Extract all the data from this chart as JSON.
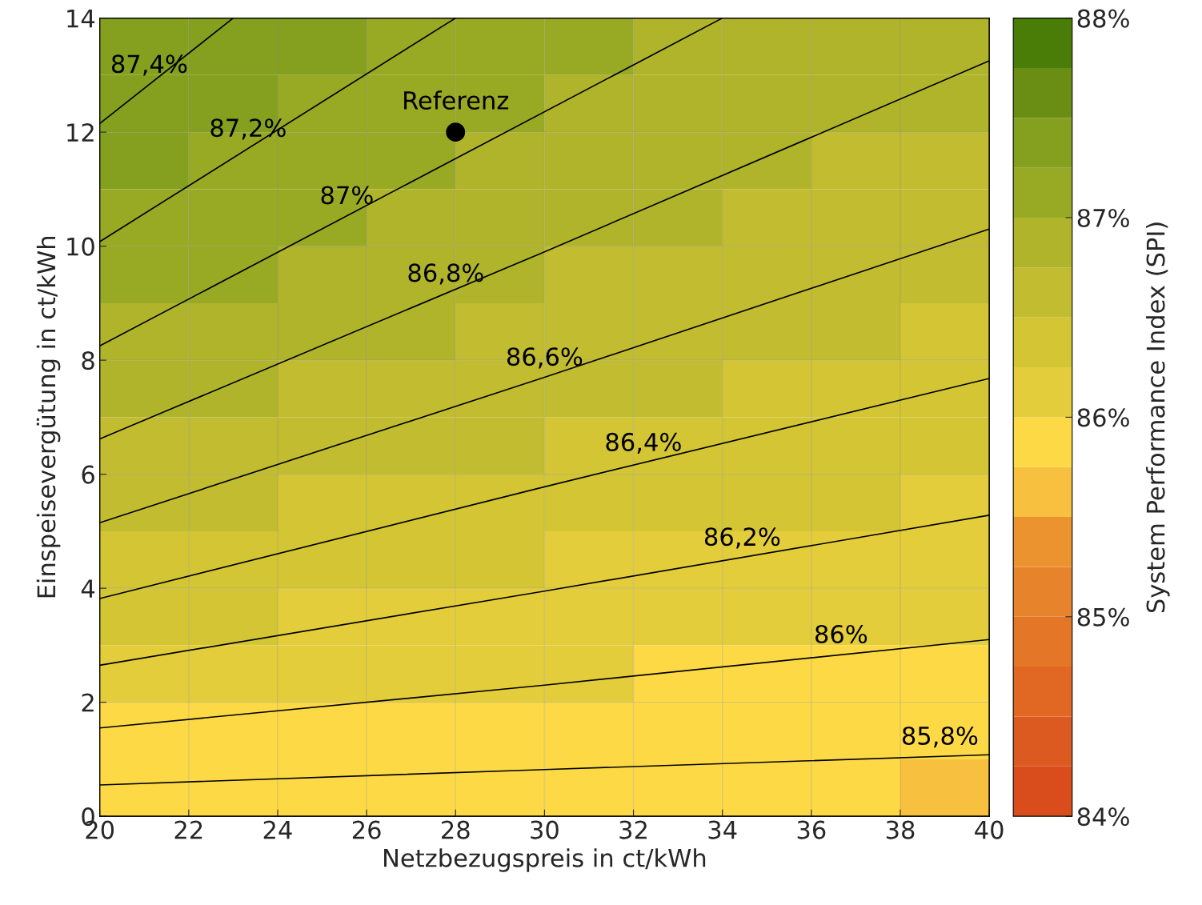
{
  "chart_data": [
    {
      "type": "heatmap",
      "clabel": "System Performance Index (SPI)",
      "clim": [
        84,
        88
      ],
      "cticks": [
        {
          "value": 84,
          "label": "84%"
        },
        {
          "value": 85,
          "label": "85%"
        },
        {
          "value": 86,
          "label": "86%"
        },
        {
          "value": 87,
          "label": "87%"
        },
        {
          "value": 88,
          "label": "88%"
        }
      ],
      "categories": [
        null,
        null,
        null,
        null,
        null,
        null,
        null,
        null,
        null,
        null
      ],
      "y_categories": [
        null,
        null,
        null,
        null,
        null,
        null,
        null,
        null,
        null,
        null,
        null,
        null,
        null,
        null
      ],
      "cells": [
        [
          87.47,
          87.36,
          87.27,
          87.2,
          87.12,
          87.05,
          86.98,
          86.93,
          86.89,
          86.84
        ],
        [
          87.38,
          87.28,
          87.2,
          87.11,
          87.04,
          86.97,
          86.91,
          86.86,
          86.82,
          86.77
        ],
        [
          87.28,
          87.2,
          87.1,
          87.03,
          86.96,
          86.89,
          86.84,
          86.79,
          86.74,
          86.7
        ],
        [
          87.19,
          87.1,
          87.01,
          86.94,
          86.87,
          86.82,
          86.76,
          86.72,
          86.67,
          86.63
        ],
        [
          87.09,
          87.0,
          86.92,
          86.85,
          86.79,
          86.73,
          86.68,
          86.64,
          86.6,
          86.56
        ],
        [
          86.98,
          86.89,
          86.82,
          86.76,
          86.7,
          86.65,
          86.6,
          86.56,
          86.52,
          86.48
        ],
        [
          86.86,
          86.79,
          86.72,
          86.66,
          86.6,
          86.55,
          86.51,
          86.47,
          86.43,
          86.4
        ],
        [
          86.74,
          86.67,
          86.61,
          86.55,
          86.5,
          86.45,
          86.42,
          86.38,
          86.35,
          86.32
        ],
        [
          86.61,
          86.54,
          86.49,
          86.44,
          86.39,
          86.35,
          86.32,
          86.28,
          86.26,
          86.23
        ],
        [
          86.47,
          86.41,
          86.36,
          86.32,
          86.28,
          86.24,
          86.21,
          86.19,
          86.16,
          86.14
        ],
        [
          86.32,
          86.27,
          86.23,
          86.19,
          86.16,
          86.13,
          86.1,
          86.08,
          86.06,
          86.05
        ],
        [
          86.15,
          86.11,
          86.08,
          86.06,
          86.03,
          86.01,
          85.99,
          85.98,
          85.96,
          85.95
        ],
        [
          85.98,
          85.95,
          85.93,
          85.91,
          85.9,
          85.88,
          85.87,
          85.86,
          85.85,
          85.85
        ],
        [
          85.78,
          85.78,
          85.77,
          85.76,
          85.76,
          85.76,
          85.75,
          85.75,
          85.75,
          85.74
        ]
      ]
    },
    {
      "type": "line",
      "xlabel": "Netzbezugspreis in ct/kWh",
      "ylabel": "Einspeisevergütung in ct/kWh",
      "xlim": [
        20,
        40
      ],
      "ylim": [
        0,
        14
      ],
      "xticks": [
        20,
        22,
        24,
        26,
        28,
        30,
        32,
        34,
        36,
        38,
        40
      ],
      "yticks": [
        0,
        2,
        4,
        6,
        8,
        10,
        12,
        14
      ],
      "grid": true,
      "line_style": "solid",
      "series": [
        {
          "name": "87,4%",
          "color": "#000000",
          "x": [
            20,
            23
          ],
          "values": [
            12.15,
            14
          ]
        },
        {
          "name": "87,2%",
          "color": "#000000",
          "x": [
            20,
            28
          ],
          "values": [
            10.08,
            14
          ]
        },
        {
          "name": "87%",
          "color": "#000000",
          "x": [
            20,
            34
          ],
          "values": [
            8.25,
            14
          ]
        },
        {
          "name": "86,8%",
          "color": "#000000",
          "x": [
            20,
            30,
            40
          ],
          "values": [
            6.62,
            9.9,
            13.25
          ]
        },
        {
          "name": "86,6%",
          "color": "#000000",
          "x": [
            20,
            30,
            40
          ],
          "values": [
            5.15,
            7.7,
            10.3
          ]
        },
        {
          "name": "86,4%",
          "color": "#000000",
          "x": [
            20,
            30,
            40
          ],
          "values": [
            3.82,
            5.78,
            7.68
          ]
        },
        {
          "name": "86,2%",
          "color": "#000000",
          "x": [
            20,
            30,
            40
          ],
          "values": [
            2.65,
            3.95,
            5.28
          ]
        },
        {
          "name": "86%",
          "color": "#000000",
          "x": [
            20,
            30,
            40
          ],
          "values": [
            1.55,
            2.3,
            3.1
          ]
        },
        {
          "name": "85,8%",
          "color": "#000000",
          "x": [
            20,
            30,
            40
          ],
          "values": [
            0.55,
            0.82,
            1.08
          ]
        },
        {
          "type": "scatter",
          "name": "Referenz",
          "color": "#000000",
          "marker": "circle",
          "x": [
            28
          ],
          "values": [
            12
          ]
        }
      ]
    }
  ]
}
